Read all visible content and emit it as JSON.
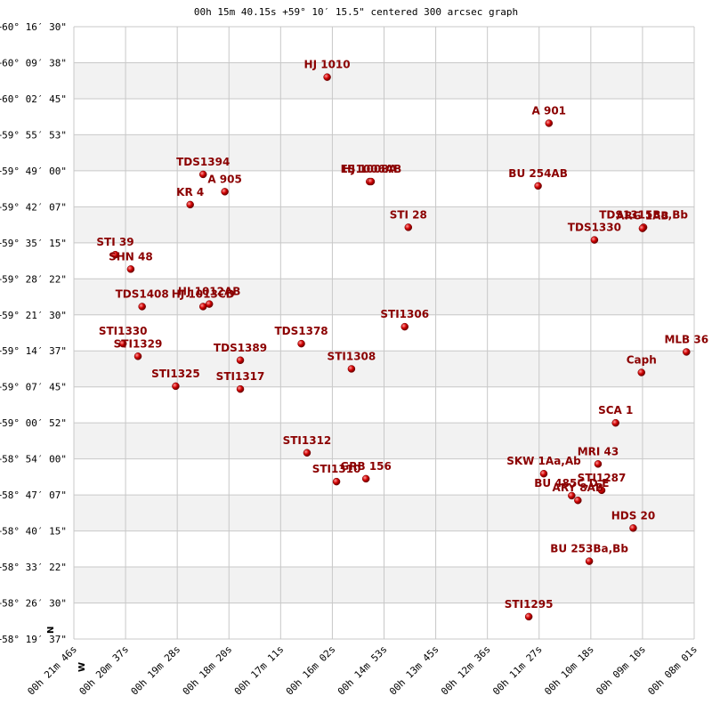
{
  "chart_data": {
    "type": "scatter",
    "title": "00h 15m 40.15s +59° 10′ 15.5\" centered 300 arcsec graph",
    "compass": {
      "north": "N",
      "west": "W"
    },
    "grid": true,
    "colors": {
      "point": "#cc0000",
      "label": "#8b0000",
      "band": "#f2f2f2",
      "grid": "#c8c8c8"
    },
    "x_ticks": [
      "00h 21m 46s",
      "00h 20m 37s",
      "00h 19m 28s",
      "00h 18m 20s",
      "00h 17m 11s",
      "00h 16m 02s",
      "00h 14m 53s",
      "00h 13m 45s",
      "00h 12m 36s",
      "00h 11m 27s",
      "00h 10m 18s",
      "00h 09m 10s",
      "00h 08m 01s"
    ],
    "y_ticks": [
      "+60° 16′ 30\"",
      "+60° 09′ 38\"",
      "+60° 02′ 45\"",
      "+59° 55′ 53\"",
      "+59° 49′ 00\"",
      "+59° 42′ 07\"",
      "+59° 35′ 15\"",
      "+59° 28′ 22\"",
      "+59° 21′ 30\"",
      "+59° 14′ 37\"",
      "+59° 07′ 45\"",
      "+59° 00′ 52\"",
      "+58° 54′ 00\"",
      "+58° 47′ 07\"",
      "+58° 40′ 15\"",
      "+58° 33′ 22\"",
      "+58° 26′ 30\"",
      "+58° 19′ 37\""
    ],
    "x_range": [
      0,
      12
    ],
    "y_range": [
      0,
      17
    ],
    "points": [
      {
        "label": "HJ 1010",
        "x": 4.9,
        "y": 1.4
      },
      {
        "label": "A  901",
        "x": 9.19,
        "y": 2.68
      },
      {
        "label": "TDS1394",
        "x": 2.5,
        "y": 4.1
      },
      {
        "label": "A  905",
        "x": 2.92,
        "y": 4.58
      },
      {
        "label": "KR   4",
        "x": 2.25,
        "y": 4.94
      },
      {
        "label": "HJ 1008A",
        "x": 5.72,
        "y": 4.3
      },
      {
        "label": "ES1006AB",
        "x": 5.75,
        "y": 4.3
      },
      {
        "label": "BU  254AB",
        "x": 8.98,
        "y": 4.42
      },
      {
        "label": "STI  28",
        "x": 6.47,
        "y": 5.57
      },
      {
        "label": "TDS1330",
        "x": 10.07,
        "y": 5.92
      },
      {
        "label": "TDS1315Ba,Bb",
        "x": 11.02,
        "y": 5.57
      },
      {
        "label": "ARG  1AB",
        "x": 11.0,
        "y": 5.6
      },
      {
        "label": "STI  39",
        "x": 0.8,
        "y": 6.33
      },
      {
        "label": "SHN  48",
        "x": 1.1,
        "y": 6.73
      },
      {
        "label": "TDS1408",
        "x": 1.32,
        "y": 7.77
      },
      {
        "label": "HJ 1012AB",
        "x": 2.62,
        "y": 7.7
      },
      {
        "label": "HJ 1013CD",
        "x": 2.5,
        "y": 7.77
      },
      {
        "label": "STI1306",
        "x": 6.4,
        "y": 8.33
      },
      {
        "label": "TDS1378",
        "x": 4.4,
        "y": 8.8
      },
      {
        "label": "STI1330",
        "x": 0.95,
        "y": 8.8
      },
      {
        "label": "STI1329",
        "x": 1.24,
        "y": 9.15
      },
      {
        "label": "TDS1389",
        "x": 3.22,
        "y": 9.26
      },
      {
        "label": "STI1308",
        "x": 5.37,
        "y": 9.5
      },
      {
        "label": "MLB  36",
        "x": 11.85,
        "y": 9.03
      },
      {
        "label": "Caph",
        "x": 10.98,
        "y": 9.6
      },
      {
        "label": "STI1325",
        "x": 1.97,
        "y": 9.98
      },
      {
        "label": "STI1317",
        "x": 3.22,
        "y": 10.06
      },
      {
        "label": "SCA   1",
        "x": 10.48,
        "y": 11.0
      },
      {
        "label": "STI1312",
        "x": 4.51,
        "y": 11.83
      },
      {
        "label": "SKW   1Aa,Ab",
        "x": 9.09,
        "y": 12.41
      },
      {
        "label": "MRI  43",
        "x": 10.14,
        "y": 12.14
      },
      {
        "label": "STI1287",
        "x": 10.21,
        "y": 12.87
      },
      {
        "label": "BU  485C,D,E",
        "x": 9.63,
        "y": 13.02
      },
      {
        "label": "ARY   8AB",
        "x": 9.75,
        "y": 13.15
      },
      {
        "label": "STI1310",
        "x": 5.08,
        "y": 12.63
      },
      {
        "label": "GRB 156",
        "x": 5.65,
        "y": 12.55
      },
      {
        "label": "HDS  20",
        "x": 10.82,
        "y": 13.92
      },
      {
        "label": "BU  253Ba,Bb",
        "x": 9.97,
        "y": 14.84
      },
      {
        "label": "STI1295",
        "x": 8.8,
        "y": 16.38
      }
    ]
  }
}
